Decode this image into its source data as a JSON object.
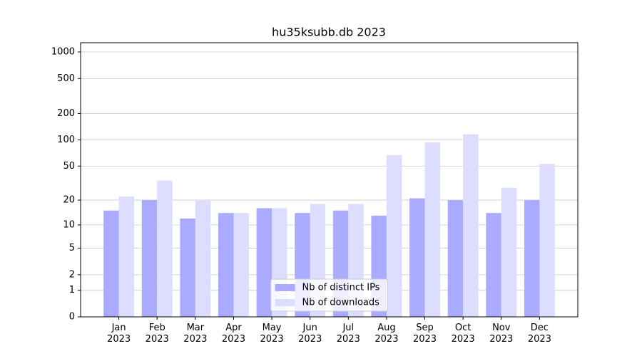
{
  "chart_data": {
    "type": "bar",
    "title": "hu35ksubb.db 2023",
    "categories": [
      "Jan 2023",
      "Feb 2023",
      "Mar 2023",
      "Apr 2023",
      "May 2023",
      "Jun 2023",
      "Jul 2023",
      "Aug 2023",
      "Sep 2023",
      "Oct 2023",
      "Nov 2023",
      "Dec 2023"
    ],
    "series": [
      {
        "name": "Nb of distinct IPs",
        "color": "#aaaaff",
        "values": [
          15,
          20,
          12,
          14,
          16,
          14,
          15,
          13,
          21,
          20,
          14,
          20
        ]
      },
      {
        "name": "Nb of downloads",
        "color": "#ddddff",
        "values": [
          22,
          34,
          20,
          14,
          16,
          18,
          18,
          67,
          94,
          116,
          28,
          53
        ]
      }
    ],
    "yscale": "log1p",
    "ylim": [
      0,
      1273
    ],
    "yticks": [
      0,
      1,
      2,
      5,
      10,
      20,
      50,
      100,
      200,
      500,
      1000
    ],
    "grid": true,
    "legend": "lower center"
  }
}
